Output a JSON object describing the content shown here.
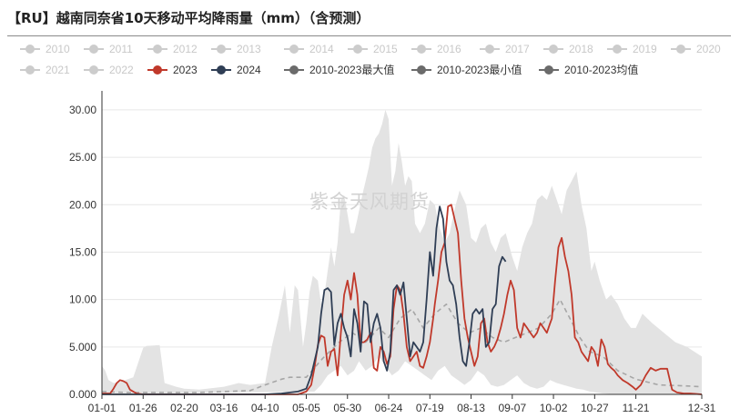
{
  "header": {
    "title": "【RU】越南同奈省10天移动平均降雨量（mm）（含预测）"
  },
  "watermark": "紫金天风期货",
  "legend": {
    "rows": [
      [
        {
          "label": "2010",
          "color": "#cccccc",
          "active": false
        },
        {
          "label": "2011",
          "color": "#cccccc",
          "active": false
        },
        {
          "label": "2012",
          "color": "#cccccc",
          "active": false
        },
        {
          "label": "2013",
          "color": "#cccccc",
          "active": false
        },
        {
          "label": "2014",
          "color": "#cccccc",
          "active": false
        },
        {
          "label": "2015",
          "color": "#cccccc",
          "active": false
        },
        {
          "label": "2016",
          "color": "#cccccc",
          "active": false
        },
        {
          "label": "2017",
          "color": "#cccccc",
          "active": false
        },
        {
          "label": "2018",
          "color": "#cccccc",
          "active": false
        },
        {
          "label": "2019",
          "color": "#cccccc",
          "active": false
        },
        {
          "label": "2020",
          "color": "#cccccc",
          "active": false
        }
      ],
      [
        {
          "label": "2021",
          "color": "#cccccc",
          "active": false
        },
        {
          "label": "2022",
          "color": "#cccccc",
          "active": false
        },
        {
          "label": "2023",
          "color": "#c0392b",
          "active": true
        },
        {
          "label": "2024",
          "color": "#2f3e55",
          "active": true
        },
        {
          "label": "2010-2023最大值",
          "color": "#6b6b6b",
          "active": true
        },
        {
          "label": "2010-2023最小值",
          "color": "#6b6b6b",
          "active": true
        },
        {
          "label": "2010-2023均值",
          "color": "#6b6b6b",
          "active": true
        }
      ]
    ]
  },
  "chart_data": {
    "type": "line",
    "x_axis_type": "day-of-year (month-day)",
    "x_tick_labels": [
      "01-01",
      "01-26",
      "02-20",
      "03-16",
      "04-10",
      "05-05",
      "05-30",
      "06-24",
      "07-19",
      "08-13",
      "09-07",
      "10-02",
      "10-27",
      "11-21",
      "12-31"
    ],
    "y_tick_labels": [
      "0.000",
      "5.000",
      "10.00",
      "15.00",
      "20.00",
      "25.00",
      "30.00"
    ],
    "ylim": [
      0,
      32
    ],
    "grid": "horizontal",
    "legend_position": "top",
    "colors": {
      "2023": "#c0392b",
      "2024": "#2f3e55",
      "mean": "#a6a6a6",
      "band": "#e3e3e3"
    },
    "band_max": {
      "x": [
        "01-01",
        "01-03",
        "01-05",
        "01-08",
        "01-12",
        "01-20",
        "01-26",
        "01-28",
        "02-05",
        "02-08",
        "02-15",
        "02-20",
        "03-01",
        "03-16",
        "03-25",
        "04-01",
        "04-10",
        "04-14",
        "04-18",
        "04-22",
        "04-25",
        "04-28",
        "04-30",
        "05-03",
        "05-05",
        "05-07",
        "05-09",
        "05-12",
        "05-14",
        "05-16",
        "05-18",
        "05-20",
        "05-22",
        "05-24",
        "05-26",
        "05-28",
        "05-30",
        "06-01",
        "06-03",
        "06-05",
        "06-08",
        "06-10",
        "06-12",
        "06-14",
        "06-16",
        "06-18",
        "06-20",
        "06-22",
        "06-24",
        "06-26",
        "06-28",
        "06-30",
        "07-02",
        "07-04",
        "07-06",
        "07-08",
        "07-10",
        "07-13",
        "07-16",
        "07-19",
        "07-22",
        "07-25",
        "07-28",
        "07-31",
        "08-03",
        "08-06",
        "08-10",
        "08-13",
        "08-16",
        "08-19",
        "08-22",
        "08-25",
        "08-28",
        "08-31",
        "09-03",
        "09-07",
        "09-10",
        "09-13",
        "09-16",
        "09-19",
        "09-22",
        "09-25",
        "09-28",
        "10-01",
        "10-04",
        "10-07",
        "10-10",
        "10-13",
        "10-16",
        "10-19",
        "10-22",
        "10-25",
        "10-27",
        "10-30",
        "11-03",
        "11-06",
        "11-10",
        "11-14",
        "11-18",
        "11-21",
        "11-25",
        "12-01",
        "12-08",
        "12-15",
        "12-22",
        "12-31"
      ],
      "y": [
        3.0,
        2.5,
        1.5,
        1.2,
        1.3,
        1.8,
        4.9,
        5.1,
        5.2,
        1.2,
        0.8,
        0.6,
        0.5,
        0.8,
        1.2,
        1.0,
        1.2,
        5.0,
        8.0,
        11.5,
        6.5,
        11.5,
        11.0,
        5.0,
        7.5,
        10.8,
        12.5,
        12.0,
        9.5,
        10.5,
        13.0,
        15.5,
        13.5,
        16.0,
        20.5,
        21.0,
        19.0,
        17.0,
        17.0,
        18.5,
        21.0,
        22.5,
        24.0,
        26.0,
        27.0,
        27.5,
        28.5,
        30.0,
        29.0,
        22.0,
        23.5,
        26.5,
        24.5,
        22.0,
        23.0,
        22.5,
        18.0,
        17.0,
        18.0,
        20.5,
        20.0,
        17.5,
        16.0,
        17.0,
        19.5,
        21.5,
        20.0,
        16.5,
        16.0,
        17.5,
        18.0,
        16.0,
        15.0,
        16.5,
        17.0,
        14.5,
        13.0,
        15.5,
        17.0,
        18.0,
        20.5,
        21.0,
        20.5,
        22.0,
        20.5,
        19.0,
        21.5,
        22.5,
        23.5,
        20.0,
        17.5,
        13.0,
        14.0,
        12.0,
        10.0,
        10.5,
        9.5,
        8.0,
        7.0,
        7.0,
        8.5,
        7.5,
        6.5,
        5.5,
        5.0,
        4.0
      ]
    },
    "band_min": {
      "x": [
        "01-01",
        "05-10",
        "05-14",
        "05-18",
        "05-22",
        "05-26",
        "05-30",
        "06-03",
        "06-06",
        "06-10",
        "06-14",
        "06-18",
        "06-22",
        "06-26",
        "06-30",
        "07-04",
        "07-08",
        "07-12",
        "07-16",
        "07-20",
        "07-24",
        "07-28",
        "08-01",
        "08-05",
        "08-09",
        "08-13",
        "08-17",
        "08-21",
        "08-25",
        "08-29",
        "09-02",
        "09-06",
        "09-10",
        "09-14",
        "09-18",
        "09-22",
        "09-26",
        "09-30",
        "10-04",
        "10-08",
        "10-12",
        "10-16",
        "10-20",
        "10-24",
        "10-28",
        "11-01",
        "11-05",
        "11-10",
        "12-31"
      ],
      "y": [
        0,
        0.3,
        1.0,
        2.0,
        2.5,
        3.0,
        2.0,
        2.5,
        3.5,
        2.5,
        3.0,
        4.0,
        3.0,
        2.0,
        2.5,
        3.5,
        3.0,
        2.5,
        2.0,
        1.5,
        2.5,
        3.0,
        2.0,
        1.5,
        1.0,
        1.5,
        2.5,
        2.0,
        1.0,
        0.8,
        1.0,
        1.5,
        2.0,
        1.2,
        0.8,
        0.6,
        0.8,
        1.5,
        1.2,
        1.0,
        0.8,
        0.6,
        0.5,
        0.3,
        0.2,
        0.1,
        0.05,
        0,
        0
      ]
    },
    "series": [
      {
        "name": "2010-2023均值",
        "style": "dashed",
        "x": [
          "01-01",
          "01-15",
          "02-01",
          "03-01",
          "04-01",
          "04-10",
          "04-20",
          "04-25",
          "05-05",
          "05-15",
          "05-25",
          "06-02",
          "06-10",
          "06-18",
          "06-24",
          "07-01",
          "07-08",
          "07-15",
          "07-22",
          "07-29",
          "08-05",
          "08-12",
          "08-19",
          "08-26",
          "09-02",
          "09-09",
          "09-16",
          "09-23",
          "10-01",
          "10-06",
          "10-12",
          "10-18",
          "10-24",
          "11-01",
          "11-10",
          "11-21",
          "12-05",
          "12-20",
          "12-31"
        ],
        "y": [
          0.3,
          0.2,
          0.2,
          0.2,
          0.4,
          1.0,
          1.6,
          1.8,
          1.8,
          3.8,
          5.5,
          6.5,
          5.5,
          7.0,
          6.0,
          8.0,
          9.0,
          7.0,
          8.5,
          9.5,
          7.5,
          6.5,
          7.0,
          6.0,
          5.5,
          6.0,
          6.5,
          7.0,
          8.5,
          10.0,
          8.0,
          6.0,
          4.5,
          4.0,
          2.5,
          1.6,
          1.0,
          0.9,
          0.8
        ]
      },
      {
        "name": "2023",
        "style": "solid",
        "x": [
          "01-01",
          "01-06",
          "01-08",
          "01-10",
          "01-12",
          "01-14",
          "01-16",
          "01-18",
          "01-22",
          "01-26",
          "02-20",
          "03-16",
          "04-10",
          "04-20",
          "04-30",
          "05-05",
          "05-08",
          "05-10",
          "05-12",
          "05-14",
          "05-16",
          "05-18",
          "05-20",
          "05-22",
          "05-24",
          "05-26",
          "05-28",
          "05-30",
          "06-01",
          "06-03",
          "06-05",
          "06-07",
          "06-09",
          "06-11",
          "06-13",
          "06-15",
          "06-17",
          "06-19",
          "06-21",
          "06-23",
          "06-25",
          "06-27",
          "06-29",
          "07-01",
          "07-03",
          "07-05",
          "07-07",
          "07-09",
          "07-11",
          "07-13",
          "07-15",
          "07-17",
          "07-19",
          "07-21",
          "07-22",
          "07-24",
          "07-26",
          "07-28",
          "07-30",
          "08-01",
          "08-03",
          "08-05",
          "08-07",
          "08-09",
          "08-11",
          "08-13",
          "08-15",
          "08-17",
          "08-19",
          "08-21",
          "08-23",
          "08-25",
          "08-27",
          "08-29",
          "08-31",
          "09-02",
          "09-04",
          "09-06",
          "09-08",
          "09-10",
          "09-12",
          "09-14",
          "09-16",
          "09-18",
          "09-20",
          "09-22",
          "09-24",
          "09-26",
          "09-28",
          "09-30",
          "10-01",
          "10-03",
          "10-05",
          "10-07",
          "10-09",
          "10-11",
          "10-13",
          "10-15",
          "10-17",
          "10-19",
          "10-21",
          "10-23",
          "10-25",
          "10-27",
          "10-29",
          "10-31",
          "11-02",
          "11-04",
          "11-06",
          "11-08",
          "11-10",
          "11-13",
          "11-16",
          "11-19",
          "11-21",
          "11-24",
          "11-27",
          "11-30",
          "12-03",
          "12-06",
          "12-10",
          "12-13",
          "12-16",
          "12-20",
          "12-24",
          "12-31"
        ],
        "y": [
          0.1,
          0.1,
          0.6,
          1.2,
          1.5,
          1.4,
          1.2,
          0.5,
          0.1,
          0.0,
          0.0,
          0.0,
          0.0,
          0.0,
          0.0,
          0.3,
          1.0,
          2.8,
          5.2,
          6.2,
          6.0,
          3.0,
          4.5,
          4.8,
          2.0,
          6.5,
          10.5,
          12.0,
          10.0,
          12.8,
          10.5,
          5.5,
          5.5,
          5.8,
          6.5,
          2.8,
          2.5,
          5.0,
          4.5,
          3.2,
          4.0,
          9.0,
          11.5,
          11.0,
          8.5,
          5.0,
          3.5,
          4.0,
          4.5,
          3.0,
          2.8,
          4.0,
          5.5,
          8.0,
          9.5,
          12.0,
          15.0,
          16.0,
          19.8,
          20.0,
          18.5,
          17.0,
          12.0,
          8.0,
          6.0,
          4.5,
          3.0,
          4.0,
          7.5,
          8.0,
          5.5,
          4.5,
          5.0,
          5.8,
          7.0,
          8.5,
          10.5,
          12.0,
          11.0,
          7.0,
          6.0,
          7.5,
          7.0,
          6.5,
          6.0,
          6.5,
          7.5,
          7.0,
          6.5,
          7.5,
          8.0,
          12.0,
          15.5,
          16.5,
          14.5,
          13.0,
          10.5,
          6.0,
          5.5,
          4.5,
          4.0,
          3.5,
          5.0,
          4.5,
          3.0,
          5.8,
          5.0,
          3.2,
          2.8,
          2.5,
          2.0,
          1.5,
          1.2,
          0.8,
          0.5,
          1.0,
          2.0,
          2.8,
          2.5,
          2.7,
          2.7,
          0.5,
          0.2,
          0.1,
          0.1,
          0.0
        ]
      },
      {
        "name": "2024",
        "style": "solid",
        "x": [
          "01-01",
          "04-10",
          "04-20",
          "04-30",
          "05-05",
          "05-08",
          "05-12",
          "05-14",
          "05-16",
          "05-18",
          "05-20",
          "05-22",
          "05-24",
          "05-26",
          "05-28",
          "05-30",
          "06-01",
          "06-03",
          "06-05",
          "06-07",
          "06-09",
          "06-11",
          "06-13",
          "06-15",
          "06-17",
          "06-19",
          "06-21",
          "06-23",
          "06-25",
          "06-27",
          "06-29",
          "07-01",
          "07-03",
          "07-05",
          "07-07",
          "07-09",
          "07-11",
          "07-13",
          "07-15",
          "07-17",
          "07-19",
          "07-21",
          "07-23",
          "07-25",
          "07-27",
          "07-29",
          "07-31",
          "08-02",
          "08-04",
          "08-06",
          "08-08",
          "08-10",
          "08-12",
          "08-14",
          "08-16",
          "08-18",
          "08-20",
          "08-22",
          "08-24",
          "08-26",
          "08-28",
          "08-30",
          "09-01",
          "09-03"
        ],
        "y": [
          0.0,
          0.0,
          0.1,
          0.3,
          0.6,
          2.0,
          5.0,
          8.5,
          11.0,
          11.2,
          10.8,
          5.2,
          7.5,
          8.5,
          7.0,
          6.0,
          4.0,
          9.0,
          7.5,
          4.5,
          9.8,
          9.5,
          5.5,
          7.5,
          8.5,
          7.0,
          3.5,
          2.5,
          4.5,
          11.0,
          11.5,
          10.5,
          11.8,
          8.0,
          4.0,
          5.5,
          5.0,
          4.5,
          5.5,
          10.0,
          15.0,
          12.5,
          17.5,
          19.8,
          18.5,
          14.0,
          12.0,
          11.5,
          9.5,
          6.0,
          3.5,
          3.0,
          5.5,
          8.5,
          9.0,
          8.5,
          9.0,
          5.0,
          5.5,
          9.0,
          9.5,
          13.5,
          14.5,
          14.0
        ]
      }
    ]
  }
}
